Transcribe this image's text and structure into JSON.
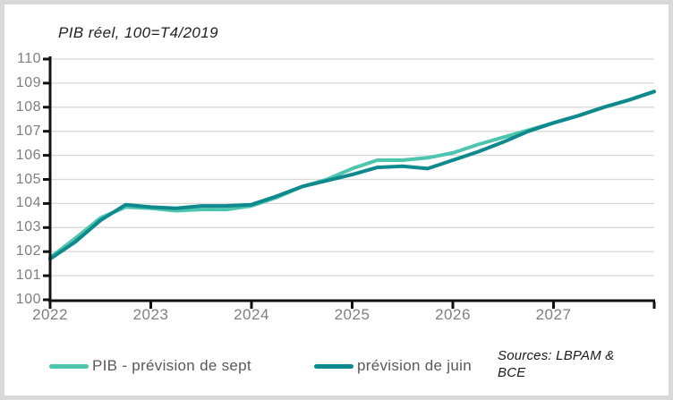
{
  "title": "PIB réel, 100=T4/2019",
  "legend": [
    {
      "label": "PIB - prévision de sept",
      "color": "#4ec5af"
    },
    {
      "label": "prévision de juin",
      "color": "#0e898d"
    }
  ],
  "sources": "Sources: LBPAM & BCE",
  "colors": {
    "grid": "#d9d9d9",
    "axis": "#111111",
    "tick_label": "#7f7f7f",
    "frame": "#d9d9d9",
    "sept_line": "#4ec5af",
    "juin_line": "#0e898d"
  },
  "chart_data": {
    "type": "line",
    "title": "PIB réel, 100=T4/2019",
    "xlabel": "",
    "ylabel": "",
    "ylim": [
      100,
      110
    ],
    "y_ticks": [
      100,
      101,
      102,
      103,
      104,
      105,
      106,
      107,
      108,
      109,
      110
    ],
    "grid": "horizontal",
    "legend_position": "bottom",
    "categories": [
      "2022Q1",
      "2022Q2",
      "2022Q3",
      "2022Q4",
      "2023Q1",
      "2023Q2",
      "2023Q3",
      "2023Q4",
      "2024Q1",
      "2024Q2",
      "2024Q3",
      "2024Q4",
      "2025Q1",
      "2025Q2",
      "2025Q3",
      "2025Q4",
      "2026Q1",
      "2026Q2",
      "2026Q3",
      "2026Q4",
      "2027Q1",
      "2027Q2",
      "2027Q3",
      "2027Q4",
      "2028Q1"
    ],
    "x_tick_labels": [
      "2022",
      "2023",
      "2024",
      "2025",
      "2026",
      "2027"
    ],
    "x_label_indices": [
      0,
      4,
      8,
      12,
      16,
      20
    ],
    "extra_tick_index": 24,
    "series": [
      {
        "name": "PIB - prévision de sept",
        "color": "#4ec5af",
        "values": [
          101.75,
          102.55,
          103.4,
          103.85,
          103.8,
          103.7,
          103.75,
          103.75,
          103.9,
          104.25,
          104.7,
          105.0,
          105.45,
          105.8,
          105.8,
          105.9,
          106.1,
          106.45,
          106.75,
          107.05,
          107.35,
          107.65,
          108.0,
          108.3,
          108.65
        ]
      },
      {
        "name": "prévision de juin",
        "color": "#0e898d",
        "values": [
          101.7,
          102.4,
          103.3,
          103.95,
          103.85,
          103.8,
          103.9,
          103.9,
          103.95,
          104.3,
          104.7,
          104.95,
          105.2,
          105.5,
          105.55,
          105.45,
          105.8,
          106.15,
          106.55,
          107.0,
          107.35,
          107.65,
          108.0,
          108.3,
          108.65
        ]
      }
    ]
  }
}
